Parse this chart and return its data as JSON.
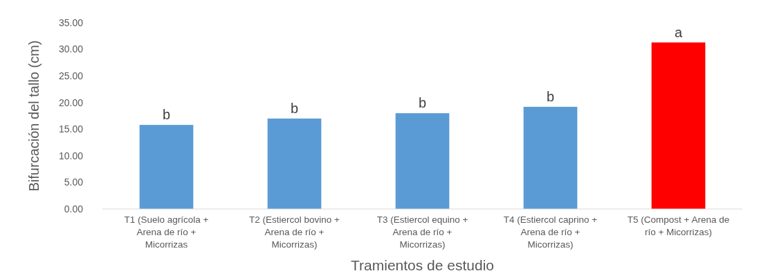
{
  "chart_data": {
    "type": "bar",
    "xlabel": "Tramientos de estudio",
    "ylabel": "Bifurcación del tallo (cm)",
    "categories": [
      "T1 (Suelo agrícola + Arena de río + Micorrizas",
      "T2 (Estiercol bovino + Arena de río + Micorrizas)",
      "T3 (Estiercol equino + Arena de río + Micorrizas)",
      "T4 (Estiercol caprino + Arena de río + Micorrizas)",
      "T5 (Compost + Arena de río + Micorrizas)"
    ],
    "values": [
      15.8,
      17.0,
      18.0,
      19.2,
      31.3
    ],
    "colors": [
      "#5b9bd5",
      "#5b9bd5",
      "#5b9bd5",
      "#5b9bd5",
      "#ff0000"
    ],
    "ylim": [
      0,
      35
    ],
    "yticks": [
      {
        "value": 0,
        "label": "0.00"
      },
      {
        "value": 5,
        "label": "5.00"
      },
      {
        "value": 10,
        "label": "10.00"
      },
      {
        "value": 15,
        "label": "15.00"
      },
      {
        "value": 20,
        "label": "20.00"
      },
      {
        "value": 25,
        "label": "25.00"
      },
      {
        "value": 30,
        "label": "30.00"
      },
      {
        "value": 35,
        "label": "35.00"
      }
    ],
    "grid": false,
    "annotations": [
      {
        "text": "b",
        "x": "T1 (Suelo agrícola + Arena de río + Micorrizas",
        "y": 15.8
      },
      {
        "text": "b",
        "x": "T2 (Estiercol bovino + Arena de río + Micorrizas)",
        "y": 17.0
      },
      {
        "text": "b",
        "x": "T3 (Estiercol equino + Arena de río + Micorrizas)",
        "y": 18.0
      },
      {
        "text": "b",
        "x": "T4 (Estiercol caprino + Arena de río + Micorrizas)",
        "y": 19.2
      },
      {
        "text": "a",
        "x": "T5 (Compost + Arena de río + Micorrizas)",
        "y": 31.3
      }
    ]
  }
}
